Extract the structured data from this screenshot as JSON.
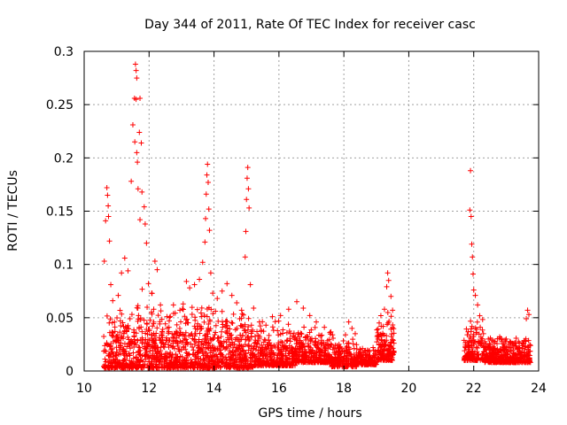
{
  "chart_data": {
    "type": "scatter",
    "title": "Day 344 of 2011, Rate Of TEC Index for receiver casc",
    "xlabel": "GPS time / hours",
    "ylabel": "ROTI / TECUs",
    "xlim": [
      10,
      24
    ],
    "ylim": [
      0,
      0.3
    ],
    "xticks": [
      "10",
      "12",
      "14",
      "16",
      "18",
      "20",
      "22",
      "24"
    ],
    "yticks": [
      "0",
      "0.05",
      "0.1",
      "0.15",
      "0.2",
      "0.25",
      "0.3"
    ],
    "grid": true,
    "marker": "plus",
    "colors": {
      "series": "#ff0000",
      "grid": "#a0a0a0",
      "axis": "#000000"
    },
    "series": [
      {
        "name": "ROTI",
        "points": [
          [
            10.62,
            0.103
          ],
          [
            10.66,
            0.141
          ],
          [
            10.7,
            0.172
          ],
          [
            10.72,
            0.165
          ],
          [
            10.74,
            0.155
          ],
          [
            10.75,
            0.145
          ],
          [
            10.78,
            0.122
          ],
          [
            10.82,
            0.081
          ],
          [
            10.88,
            0.066
          ],
          [
            11.05,
            0.071
          ],
          [
            11.15,
            0.092
          ],
          [
            11.25,
            0.106
          ],
          [
            11.35,
            0.094
          ],
          [
            11.45,
            0.178
          ],
          [
            11.5,
            0.231
          ],
          [
            11.55,
            0.256
          ],
          [
            11.58,
            0.288
          ],
          [
            11.6,
            0.282
          ],
          [
            11.62,
            0.275
          ],
          [
            11.6,
            0.255
          ],
          [
            11.56,
            0.215
          ],
          [
            11.62,
            0.205
          ],
          [
            11.64,
            0.196
          ],
          [
            11.66,
            0.171
          ],
          [
            11.7,
            0.224
          ],
          [
            11.72,
            0.256
          ],
          [
            11.76,
            0.214
          ],
          [
            11.72,
            0.142
          ],
          [
            11.78,
            0.168
          ],
          [
            11.85,
            0.154
          ],
          [
            11.88,
            0.138
          ],
          [
            11.92,
            0.12
          ],
          [
            11.98,
            0.082
          ],
          [
            12.08,
            0.073
          ],
          [
            12.18,
            0.103
          ],
          [
            12.25,
            0.095
          ],
          [
            12.35,
            0.062
          ],
          [
            12.55,
            0.051
          ],
          [
            12.75,
            0.062
          ],
          [
            12.95,
            0.057
          ],
          [
            13.05,
            0.063
          ],
          [
            13.15,
            0.084
          ],
          [
            13.25,
            0.078
          ],
          [
            13.4,
            0.081
          ],
          [
            13.55,
            0.086
          ],
          [
            13.65,
            0.102
          ],
          [
            13.72,
            0.121
          ],
          [
            13.74,
            0.143
          ],
          [
            13.76,
            0.166
          ],
          [
            13.78,
            0.184
          ],
          [
            13.8,
            0.194
          ],
          [
            13.82,
            0.177
          ],
          [
            13.84,
            0.152
          ],
          [
            13.86,
            0.132
          ],
          [
            13.9,
            0.092
          ],
          [
            13.96,
            0.073
          ],
          [
            14.1,
            0.068
          ],
          [
            14.25,
            0.075
          ],
          [
            14.4,
            0.082
          ],
          [
            14.55,
            0.071
          ],
          [
            14.7,
            0.064
          ],
          [
            14.85,
            0.057
          ],
          [
            14.96,
            0.107
          ],
          [
            14.98,
            0.131
          ],
          [
            15.0,
            0.161
          ],
          [
            15.02,
            0.181
          ],
          [
            15.04,
            0.191
          ],
          [
            15.06,
            0.171
          ],
          [
            15.08,
            0.153
          ],
          [
            15.12,
            0.081
          ],
          [
            15.22,
            0.059
          ],
          [
            15.4,
            0.046
          ],
          [
            15.6,
            0.043
          ],
          [
            15.8,
            0.051
          ],
          [
            16.05,
            0.052
          ],
          [
            16.3,
            0.058
          ],
          [
            16.55,
            0.065
          ],
          [
            16.75,
            0.059
          ],
          [
            16.95,
            0.052
          ],
          [
            17.15,
            0.046
          ],
          [
            17.4,
            0.041
          ],
          [
            17.65,
            0.034
          ],
          [
            17.85,
            0.025
          ],
          [
            18.05,
            0.034
          ],
          [
            18.15,
            0.046
          ],
          [
            18.25,
            0.04
          ],
          [
            18.35,
            0.035
          ],
          [
            18.5,
            0.02
          ],
          [
            18.7,
            0.015
          ],
          [
            18.9,
            0.022
          ],
          [
            19.05,
            0.03
          ],
          [
            19.15,
            0.042
          ],
          [
            19.25,
            0.058
          ],
          [
            19.32,
            0.079
          ],
          [
            19.35,
            0.092
          ],
          [
            19.38,
            0.085
          ],
          [
            19.45,
            0.07
          ],
          [
            19.5,
            0.057
          ],
          [
            21.8,
            0.034
          ],
          [
            21.88,
            0.151
          ],
          [
            21.9,
            0.188
          ],
          [
            21.92,
            0.145
          ],
          [
            21.94,
            0.119
          ],
          [
            21.96,
            0.107
          ],
          [
            21.98,
            0.091
          ],
          [
            22.0,
            0.076
          ],
          [
            22.05,
            0.071
          ],
          [
            22.12,
            0.062
          ],
          [
            22.2,
            0.041
          ],
          [
            22.3,
            0.035
          ],
          [
            22.45,
            0.03
          ],
          [
            22.6,
            0.028
          ],
          [
            22.8,
            0.032
          ],
          [
            23.0,
            0.03
          ],
          [
            23.2,
            0.026
          ],
          [
            23.4,
            0.022
          ],
          [
            23.55,
            0.028
          ],
          [
            23.62,
            0.049
          ],
          [
            23.66,
            0.057
          ],
          [
            23.7,
            0.053
          ]
        ]
      }
    ],
    "dense_bands": [
      {
        "x": [
          10.6,
          11.45
        ],
        "y": [
          0.003,
          0.06
        ]
      },
      {
        "x": [
          11.45,
          12.15
        ],
        "y": [
          0.003,
          0.08
        ]
      },
      {
        "x": [
          12.15,
          13.0
        ],
        "y": [
          0.003,
          0.065
        ]
      },
      {
        "x": [
          13.0,
          14.1
        ],
        "y": [
          0.003,
          0.07
        ]
      },
      {
        "x": [
          14.1,
          15.2
        ],
        "y": [
          0.003,
          0.06
        ]
      },
      {
        "x": [
          15.2,
          16.5
        ],
        "y": [
          0.005,
          0.05
        ]
      },
      {
        "x": [
          16.5,
          17.6
        ],
        "y": [
          0.008,
          0.045
        ]
      },
      {
        "x": [
          17.6,
          18.4
        ],
        "y": [
          0.004,
          0.035
        ]
      },
      {
        "x": [
          18.4,
          19.0
        ],
        "y": [
          0.006,
          0.022
        ]
      },
      {
        "x": [
          19.0,
          19.55
        ],
        "y": [
          0.01,
          0.06
        ]
      },
      {
        "x": [
          21.7,
          22.3
        ],
        "y": [
          0.01,
          0.055
        ]
      },
      {
        "x": [
          22.3,
          23.75
        ],
        "y": [
          0.008,
          0.035
        ]
      }
    ]
  }
}
